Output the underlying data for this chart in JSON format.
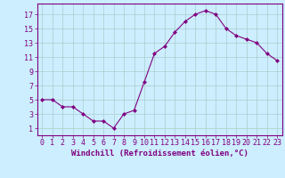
{
  "x": [
    0,
    1,
    2,
    3,
    4,
    5,
    6,
    7,
    8,
    9,
    10,
    11,
    12,
    13,
    14,
    15,
    16,
    17,
    18,
    19,
    20,
    21,
    22,
    23
  ],
  "y": [
    5,
    5,
    4,
    4,
    3,
    2,
    2,
    1,
    3,
    3.5,
    7.5,
    11.5,
    12.5,
    14.5,
    16,
    17,
    17.5,
    17,
    15,
    14,
    13.5,
    13,
    11.5,
    10.5
  ],
  "line_color": "#800080",
  "marker": "D",
  "marker_size": 2,
  "bg_color": "#cceeff",
  "grid_color": "#aacccc",
  "xlabel": "Windchill (Refroidissement éolien,°C)",
  "yticks": [
    1,
    3,
    5,
    7,
    9,
    11,
    13,
    15,
    17
  ],
  "xlim": [
    -0.5,
    23.5
  ],
  "ylim": [
    0,
    18.5
  ],
  "xlabel_fontsize": 6.5,
  "tick_fontsize": 6,
  "line_color_spine": "#800080",
  "label_color": "#800080"
}
